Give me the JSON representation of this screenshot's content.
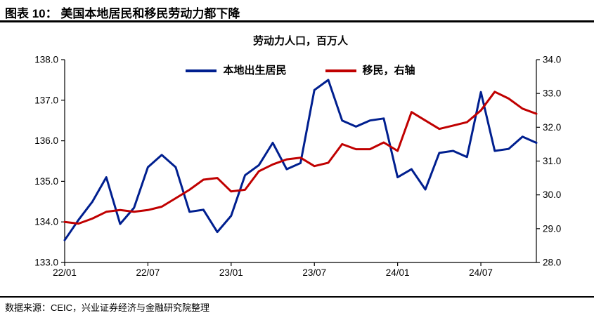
{
  "header": {
    "title": "图表 10： 美国本地居民和移民劳动力都下降"
  },
  "chart_data": {
    "type": "line",
    "title": "劳动力人口，百万人",
    "legend_position": "top-center",
    "grid": false,
    "categories": [
      "22/01",
      "22/02",
      "22/03",
      "22/04",
      "22/05",
      "22/06",
      "22/07",
      "22/08",
      "22/09",
      "22/10",
      "22/11",
      "22/12",
      "23/01",
      "23/02",
      "23/03",
      "23/04",
      "23/05",
      "23/06",
      "23/07",
      "23/08",
      "23/09",
      "23/10",
      "23/11",
      "23/12",
      "24/01",
      "24/02",
      "24/03",
      "24/04",
      "24/05",
      "24/06",
      "24/07",
      "24/08",
      "24/09",
      "24/10",
      "24/11"
    ],
    "x_tick_labels": [
      "22/01",
      "22/07",
      "23/01",
      "23/07",
      "24/01",
      "24/07"
    ],
    "x_tick_indices": [
      0,
      6,
      12,
      18,
      24,
      30
    ],
    "left_axis": {
      "min": 133.0,
      "max": 138.0,
      "step": 1.0,
      "tick_labels": [
        "133.0",
        "134.0",
        "135.0",
        "136.0",
        "137.0",
        "138.0"
      ]
    },
    "right_axis": {
      "min": 28.0,
      "max": 34.0,
      "step": 1.0,
      "tick_labels": [
        "28.0",
        "29.0",
        "30.0",
        "31.0",
        "32.0",
        "33.0",
        "34.0"
      ]
    },
    "series": [
      {
        "name": "本地出生居民",
        "axis": "left",
        "color": "#001F8F",
        "values": [
          133.55,
          134.05,
          134.5,
          135.1,
          133.95,
          134.35,
          135.35,
          135.65,
          135.35,
          134.25,
          134.3,
          133.75,
          134.15,
          135.15,
          135.4,
          135.95,
          135.3,
          135.45,
          137.25,
          137.5,
          136.5,
          136.35,
          136.5,
          136.55,
          135.1,
          135.3,
          134.8,
          135.7,
          135.75,
          135.6,
          137.2,
          135.75,
          135.8,
          136.1,
          135.95
        ]
      },
      {
        "name": "移民，右轴",
        "axis": "right",
        "color": "#C00000",
        "values": [
          29.2,
          29.15,
          29.3,
          29.5,
          29.55,
          29.5,
          29.55,
          29.65,
          29.9,
          30.15,
          30.45,
          30.5,
          30.1,
          30.15,
          30.7,
          30.9,
          31.05,
          31.1,
          30.85,
          30.95,
          31.5,
          31.35,
          31.35,
          31.55,
          31.3,
          32.45,
          32.2,
          31.95,
          32.05,
          32.15,
          32.5,
          33.05,
          32.85,
          32.55,
          32.4
        ]
      }
    ]
  },
  "footer": {
    "source": "数据来源：CEIC，兴业证券经济与金融研究院整理"
  }
}
